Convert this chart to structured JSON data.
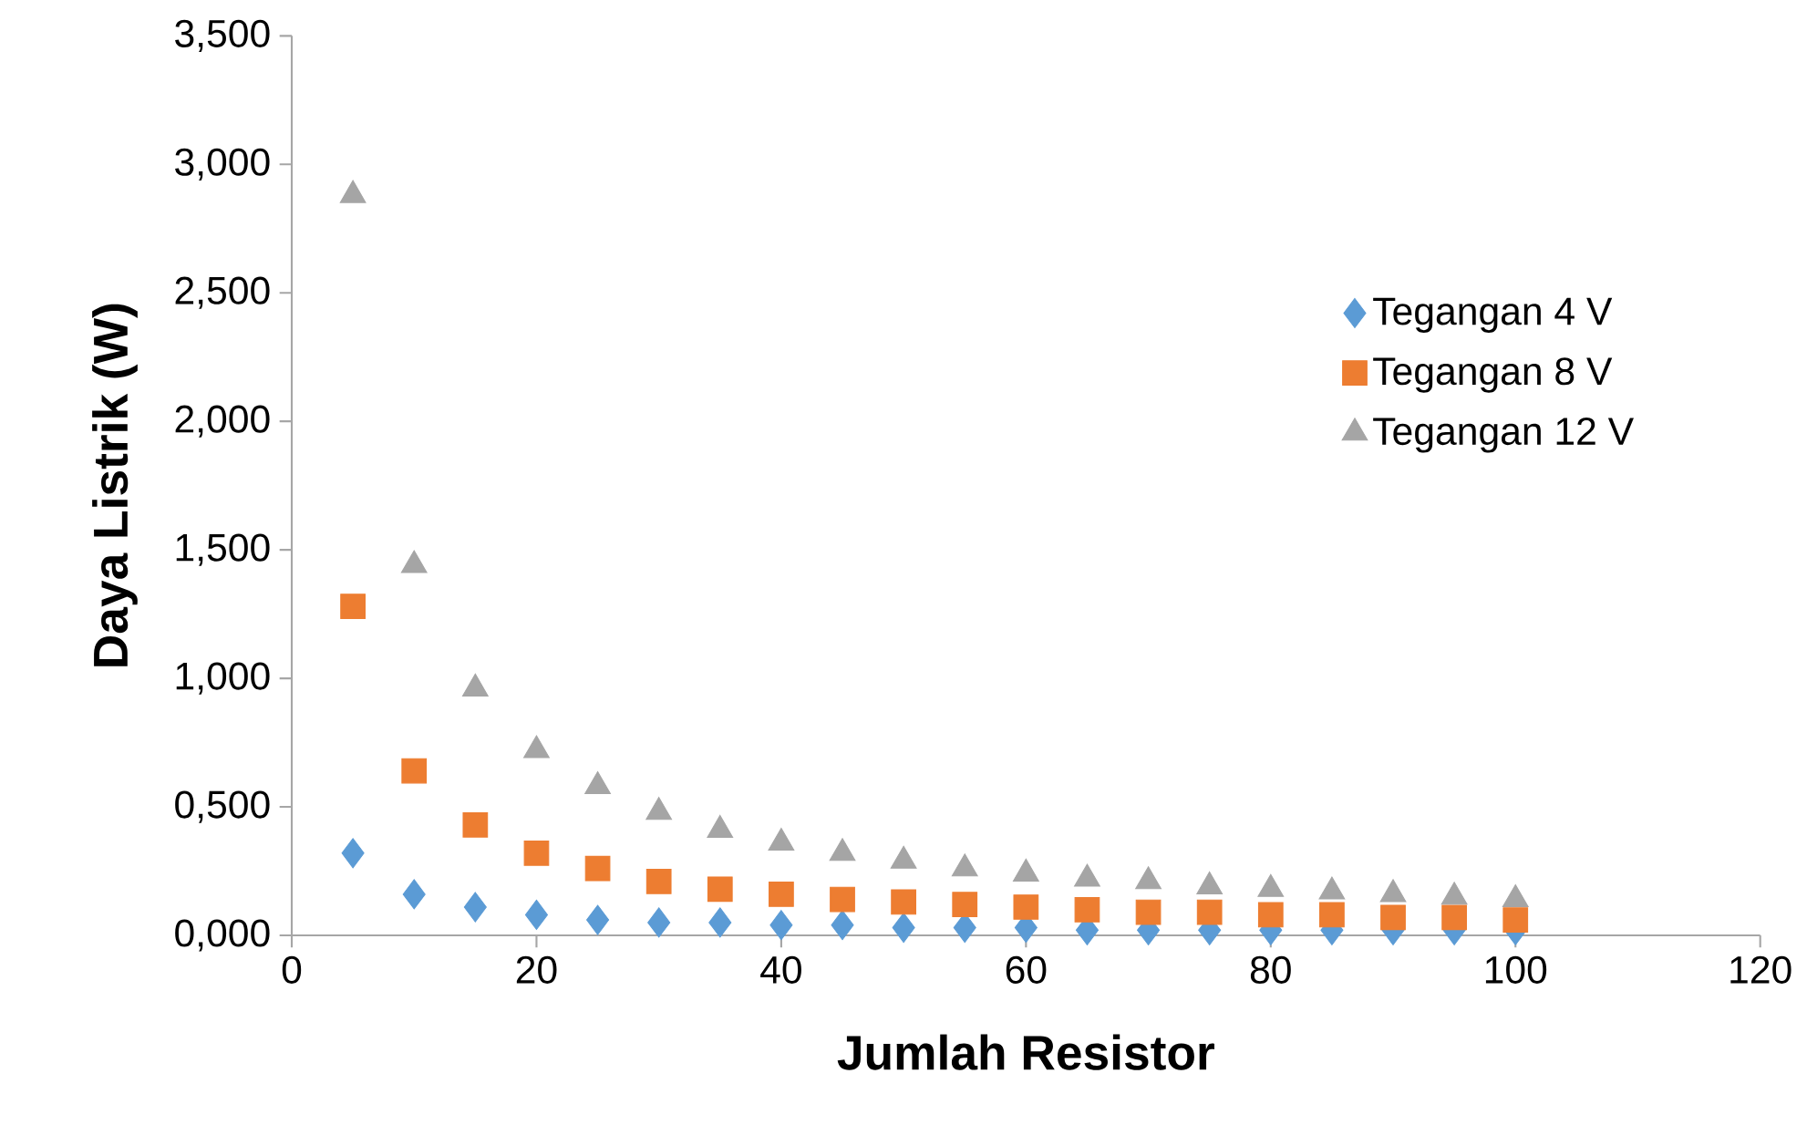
{
  "chart_data": {
    "type": "scatter",
    "xlabel": "Jumlah Resistor",
    "ylabel": "Daya Listrik (W)",
    "x": [
      5,
      10,
      15,
      20,
      25,
      30,
      35,
      40,
      45,
      50,
      55,
      60,
      65,
      70,
      75,
      80,
      85,
      90,
      95,
      100
    ],
    "series": [
      {
        "name": "Tegangan 4 V",
        "color": "#5b9bd5",
        "marker": "diamond",
        "values": [
          0.32,
          0.16,
          0.11,
          0.08,
          0.06,
          0.05,
          0.05,
          0.04,
          0.04,
          0.03,
          0.03,
          0.03,
          0.02,
          0.02,
          0.02,
          0.02,
          0.02,
          0.02,
          0.02,
          0.02
        ]
      },
      {
        "name": "Tegangan 8 V",
        "color": "#ed7d31",
        "marker": "square",
        "values": [
          1.28,
          0.64,
          0.43,
          0.32,
          0.26,
          0.21,
          0.18,
          0.16,
          0.14,
          0.13,
          0.12,
          0.11,
          0.1,
          0.09,
          0.09,
          0.08,
          0.08,
          0.07,
          0.07,
          0.06
        ]
      },
      {
        "name": "Tegangan 12 V",
        "color": "#a5a5a5",
        "marker": "triangle",
        "values": [
          2.88,
          1.44,
          0.96,
          0.72,
          0.58,
          0.48,
          0.41,
          0.36,
          0.32,
          0.29,
          0.26,
          0.24,
          0.22,
          0.21,
          0.19,
          0.18,
          0.17,
          0.16,
          0.15,
          0.14
        ]
      }
    ],
    "xlim": [
      0,
      120
    ],
    "xticks": [
      0,
      20,
      40,
      60,
      80,
      100,
      120
    ],
    "ylim": [
      0,
      3.5
    ],
    "yticks": [
      {
        "value": 0,
        "label": "0,000"
      },
      {
        "value": 0.5,
        "label": "0,500"
      },
      {
        "value": 1,
        "label": "1,000"
      },
      {
        "value": 1.5,
        "label": "1,500"
      },
      {
        "value": 2,
        "label": "2,000"
      },
      {
        "value": 2.5,
        "label": "2,500"
      },
      {
        "value": 3,
        "label": "3,000"
      },
      {
        "value": 3.5,
        "label": "3,500"
      }
    ],
    "grid": false,
    "legend": "right"
  }
}
